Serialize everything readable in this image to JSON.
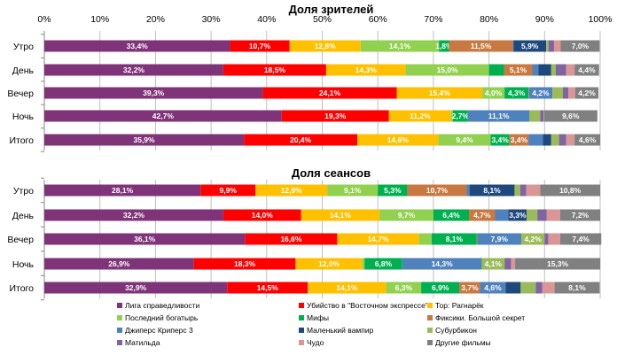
{
  "chart_data": [
    {
      "type": "bar",
      "orientation": "horizontal",
      "stacked": "percent",
      "title": "Доля зрителей",
      "xlabel": "",
      "ylabel": "",
      "xlim": [
        0,
        100
      ],
      "x_ticks": [
        "0%",
        "10%",
        "20%",
        "30%",
        "40%",
        "50%",
        "60%",
        "70%",
        "80%",
        "90%",
        "100%"
      ],
      "grid": true,
      "categories": [
        "Утро",
        "День",
        "Вечер",
        "Ночь",
        "Итого"
      ],
      "series": [
        {
          "name": "Лига справедливости",
          "values": [
            33.4,
            32.2,
            39.3,
            42.7,
            35.9
          ],
          "labels": [
            "33,4%",
            "32,2%",
            "39,3%",
            "42,7%",
            "35,9%"
          ]
        },
        {
          "name": "Убийство в \"Восточном экспрессе\"",
          "values": [
            10.7,
            18.5,
            24.1,
            19.3,
            20.4
          ],
          "labels": [
            "10,7%",
            "18,5%",
            "24,1%",
            "19,3%",
            "20,4%"
          ]
        },
        {
          "name": "Тор: Рагнарёк",
          "values": [
            12.8,
            14.3,
            15.4,
            11.2,
            14.6
          ],
          "labels": [
            "12,8%",
            "14,3%",
            "15,4%",
            "11,2%",
            "14,6%"
          ]
        },
        {
          "name": "Последний богатырь",
          "values": [
            14.1,
            15.0,
            4.0,
            0.3,
            9.4
          ],
          "labels": [
            "14,1%",
            "15,0%",
            "4,0%",
            "",
            "9,4%"
          ]
        },
        {
          "name": "Мифы",
          "values": [
            1.8,
            2.7,
            4.3,
            2.7,
            3.4
          ],
          "labels": [
            "1,8%",
            "",
            "4,3%",
            "2,7%",
            "3,4%"
          ]
        },
        {
          "name": "Фиксики. Большой секрет",
          "values": [
            11.5,
            5.1,
            0.1,
            0.0,
            3.4
          ],
          "labels": [
            "11,5%",
            "5,1%",
            "",
            "",
            "3,4%"
          ]
        },
        {
          "name": "Джиперс Криперс 3",
          "values": [
            0.1,
            1.1,
            4.2,
            11.1,
            2.6
          ],
          "labels": [
            "",
            "",
            "4,2%",
            "11,1%",
            ""
          ]
        },
        {
          "name": "Маленький вампир",
          "values": [
            5.9,
            2.3,
            0.0,
            0.0,
            1.5
          ],
          "labels": [
            "5,9%",
            "",
            "",
            "",
            ""
          ]
        },
        {
          "name": "Субурбикон",
          "values": [
            0.4,
            0.8,
            1.9,
            1.9,
            1.4
          ],
          "labels": [
            "",
            "",
            "",
            "",
            ""
          ]
        },
        {
          "name": "Матильда",
          "values": [
            1.0,
            1.9,
            1.0,
            0.6,
            1.3
          ],
          "labels": [
            "",
            "",
            "",
            "",
            ""
          ]
        },
        {
          "name": "Чудо",
          "values": [
            1.2,
            1.5,
            1.2,
            0.1,
            1.5
          ],
          "labels": [
            "",
            "",
            "",
            "",
            ""
          ]
        },
        {
          "name": "Другие фильмы",
          "values": [
            7.0,
            4.4,
            4.2,
            9.6,
            4.6
          ],
          "labels": [
            "7,0%",
            "4,4%",
            "4,2%",
            "9,6%",
            "4,6%"
          ]
        }
      ]
    },
    {
      "type": "bar",
      "orientation": "horizontal",
      "stacked": "percent",
      "title": "Доля сеансов",
      "xlabel": "",
      "ylabel": "",
      "xlim": [
        0,
        100
      ],
      "grid": true,
      "categories": [
        "Утро",
        "День",
        "Вечер",
        "Ночь",
        "Итого"
      ],
      "series": [
        {
          "name": "Лига справедливости",
          "values": [
            28.1,
            32.2,
            36.1,
            26.9,
            32.9
          ],
          "labels": [
            "28,1%",
            "32,2%",
            "36,1%",
            "26,9%",
            "32,9%"
          ]
        },
        {
          "name": "Убийство в \"Восточном экспрессе\"",
          "values": [
            9.9,
            14.0,
            16.6,
            18.3,
            14.5
          ],
          "labels": [
            "9,9%",
            "14,0%",
            "16,6%",
            "18,3%",
            "14,5%"
          ]
        },
        {
          "name": "Тор: Рагнарёк",
          "values": [
            12.9,
            14.1,
            14.7,
            12.0,
            14.1
          ],
          "labels": [
            "12,9%",
            "14,1%",
            "14,7%",
            "12,0%",
            "14,1%"
          ]
        },
        {
          "name": "Последний богатырь",
          "values": [
            9.1,
            9.7,
            2.3,
            0.4,
            6.3
          ],
          "labels": [
            "9,1%",
            "9,7%",
            "",
            "",
            "6,3%"
          ]
        },
        {
          "name": "Мифы",
          "values": [
            5.3,
            6.4,
            8.1,
            6.8,
            6.9
          ],
          "labels": [
            "5,3%",
            "6,4%",
            "8,1%",
            "6,8%",
            "6,9%"
          ]
        },
        {
          "name": "Фиксики. Большой секрет",
          "values": [
            10.7,
            4.7,
            0.1,
            0.0,
            3.7
          ],
          "labels": [
            "10,7%",
            "4,7%",
            "",
            "",
            "3,7%"
          ]
        },
        {
          "name": "Джиперс Криперс 3",
          "values": [
            0.5,
            2.4,
            7.9,
            14.3,
            4.6
          ],
          "labels": [
            "",
            "",
            "7,9%",
            "14,3%",
            "4,6%"
          ]
        },
        {
          "name": "Маленький вампир",
          "values": [
            8.1,
            3.3,
            0.0,
            0.0,
            2.7
          ],
          "labels": [
            "8,1%",
            "3,3%",
            "",
            "",
            ""
          ]
        },
        {
          "name": "Субурбикон",
          "values": [
            1.0,
            1.9,
            4.2,
            4.1,
            2.7
          ],
          "labels": [
            "",
            "",
            "4,2%",
            "4,1%",
            ""
          ]
        },
        {
          "name": "Матильда",
          "values": [
            1.1,
            1.7,
            0.7,
            1.2,
            1.2
          ],
          "labels": [
            "",
            "",
            "",
            "",
            ""
          ]
        },
        {
          "name": "Чудо",
          "values": [
            2.5,
            2.4,
            2.1,
            0.7,
            2.2
          ],
          "labels": [
            "",
            "",
            "",
            "",
            ""
          ]
        },
        {
          "name": "Другие фильмы",
          "values": [
            10.8,
            7.2,
            7.4,
            15.3,
            8.1
          ],
          "labels": [
            "10,8%",
            "7,2%",
            "7,4%",
            "15,3%",
            "8,1%"
          ]
        }
      ]
    }
  ],
  "legend": {
    "placement": "bottom",
    "items": [
      {
        "name": "Лига справедливости",
        "color": "#7F3378"
      },
      {
        "name": "Убийство в \"Восточном экспрессе\"",
        "color": "#FF0000"
      },
      {
        "name": "Тор: Рагнарёк",
        "color": "#FFC000"
      },
      {
        "name": "Последний богатырь",
        "color": "#92D050"
      },
      {
        "name": "Мифы",
        "color": "#00B050"
      },
      {
        "name": "Фиксики. Большой секрет",
        "color": "#C87941"
      },
      {
        "name": "Джиперс Криперс 3",
        "color": "#4F81BD"
      },
      {
        "name": "Маленький вампир",
        "color": "#1F497D"
      },
      {
        "name": "Субурбикон",
        "color": "#9BBB59"
      },
      {
        "name": "Матильда",
        "color": "#8064A2"
      },
      {
        "name": "Чудо",
        "color": "#D99694"
      },
      {
        "name": "Другие фильмы",
        "color": "#808080"
      }
    ]
  }
}
